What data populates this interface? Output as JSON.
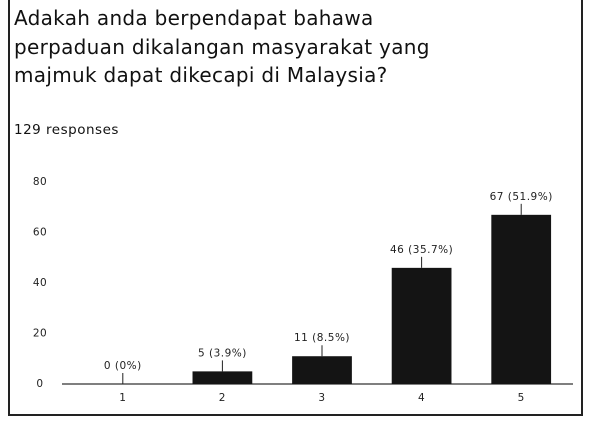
{
  "chart_data": {
    "type": "bar",
    "title": "Adakah anda berpendapat bahawa perpaduan dikalangan masyarakat yang majmuk dapat dikecapi di Malaysia?",
    "subtitle": "129 responses",
    "categories": [
      "1",
      "2",
      "3",
      "4",
      "5"
    ],
    "values": [
      0,
      5,
      11,
      46,
      67
    ],
    "value_labels": [
      "0 (0%)",
      "5 (3.9%)",
      "11 (8.5%)",
      "46 (35.7%)",
      "67 (51.9%)"
    ],
    "color": "#141414",
    "ylim": [
      0,
      80
    ],
    "yticks": [
      0,
      20,
      40,
      60,
      80
    ],
    "grid": false
  }
}
